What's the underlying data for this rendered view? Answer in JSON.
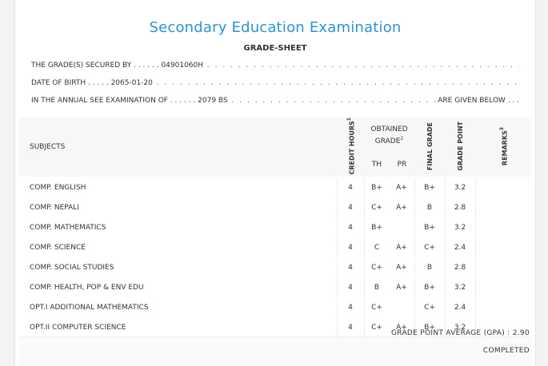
{
  "header": {
    "title": "Secondary Education Examination",
    "subtitle": "GRADE-SHEET"
  },
  "student": {
    "grade_label": "THE GRADE(S) SECURED BY",
    "grade_value": "04901060H",
    "dob_label": "DATE OF BIRTH",
    "dob_value": "2065-01-20",
    "exam_label": "IN THE ANNUAL SEE EXAMINATION OF",
    "exam_value": "2079 BS",
    "exam_suffix": "ARE GIVEN BELOW"
  },
  "table": {
    "headers": {
      "subjects": "SUBJECTS",
      "credit_hours": "CREDIT HOURS",
      "credit_sup": "1",
      "obtained": "OBTAINED",
      "grade": "GRADE",
      "grade_sup": "2",
      "th": "TH",
      "pr": "PR",
      "final_grade": "FINAL GRADE",
      "grade_point": "GRADE POINT",
      "remarks": "REMARKS",
      "remarks_sup": "3"
    },
    "rows": [
      {
        "subject": "COMP. ENGLISH",
        "credit": "4",
        "th": "B+",
        "pr": "A+",
        "final": "B+",
        "gp": "3.2"
      },
      {
        "subject": "COMP. NEPALI",
        "credit": "4",
        "th": "C+",
        "pr": "A+",
        "final": "B",
        "gp": "2.8"
      },
      {
        "subject": "COMP. MATHEMATICS",
        "credit": "4",
        "th": "B+",
        "pr": "",
        "final": "B+",
        "gp": "3.2"
      },
      {
        "subject": "COMP. SCIENCE",
        "credit": "4",
        "th": "C",
        "pr": "A+",
        "final": "C+",
        "gp": "2.4"
      },
      {
        "subject": "COMP. SOCIAL STUDIES",
        "credit": "4",
        "th": "C+",
        "pr": "A+",
        "final": "B",
        "gp": "2.8"
      },
      {
        "subject": "COMP. HEALTH, POP & ENV EDU",
        "credit": "4",
        "th": "B",
        "pr": "A+",
        "final": "B+",
        "gp": "3.2"
      },
      {
        "subject": "OPT.I ADDITIONAL MATHEMATICS",
        "credit": "4",
        "th": "C+",
        "pr": "",
        "final": "C+",
        "gp": "2.4"
      },
      {
        "subject": "OPT.II COMPUTER SCIENCE",
        "credit": "4",
        "th": "C+",
        "pr": "A+",
        "final": "B+",
        "gp": "3.2"
      }
    ]
  },
  "footer": {
    "gpa_label": "GRADE POINT AVERAGE (GPA) :",
    "gpa_value": "2.90",
    "status": "COMPLETED"
  }
}
